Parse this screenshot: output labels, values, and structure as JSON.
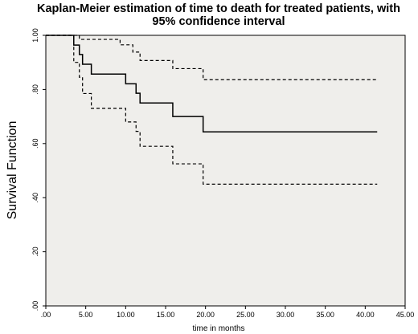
{
  "chart_data": {
    "type": "line",
    "title_line1": "Kaplan-Meier estimation of time to death for treated patients, with",
    "title_line2": "95% confidence interval",
    "xlabel": "time in months",
    "ylabel": "Survival Function",
    "xlim": [
      0,
      45
    ],
    "ylim": [
      0,
      1
    ],
    "x_ticks": [
      0,
      5,
      10,
      15,
      20,
      25,
      30,
      35,
      40,
      45
    ],
    "x_tick_labels": [
      ".00",
      "5.00",
      "10.00",
      "15.00",
      "20.00",
      "25.00",
      "30.00",
      "35.00",
      "40.00",
      "45.00"
    ],
    "y_ticks": [
      0,
      0.2,
      0.4,
      0.6,
      0.8,
      1.0
    ],
    "y_tick_labels": [
      ".00",
      ".20",
      ".40",
      ".60",
      ".80",
      "1.00"
    ],
    "grid": false,
    "colors": {
      "plot_background": "#efeeeb",
      "line": "#000000",
      "page_background": "#ffffff"
    },
    "series": [
      {
        "style": "solid",
        "steps": [
          [
            0,
            1.0
          ],
          [
            3.5,
            0.964
          ],
          [
            4.2,
            0.929
          ],
          [
            4.6,
            0.893
          ],
          [
            5.7,
            0.857
          ],
          [
            10.0,
            0.821
          ],
          [
            11.3,
            0.786
          ],
          [
            11.8,
            0.75
          ],
          [
            15.9,
            0.7
          ],
          [
            19.7,
            0.643
          ],
          [
            41.5,
            0.643
          ]
        ]
      },
      {
        "style": "dashed",
        "steps": [
          [
            0,
            1.0
          ],
          [
            4.2,
            0.985
          ],
          [
            4.6,
            0.985
          ],
          [
            9.3,
            0.965
          ],
          [
            10.9,
            0.938
          ],
          [
            11.8,
            0.907
          ],
          [
            15.9,
            0.877
          ],
          [
            19.7,
            0.836
          ],
          [
            41.5,
            0.836
          ]
        ]
      },
      {
        "style": "dashed",
        "steps": [
          [
            0,
            1.0
          ],
          [
            3.5,
            0.9
          ],
          [
            4.2,
            0.845
          ],
          [
            4.6,
            0.785
          ],
          [
            5.7,
            0.73
          ],
          [
            10.0,
            0.68
          ],
          [
            11.3,
            0.645
          ],
          [
            11.8,
            0.59
          ],
          [
            15.9,
            0.525
          ],
          [
            19.7,
            0.45
          ],
          [
            41.5,
            0.45
          ]
        ]
      }
    ]
  }
}
